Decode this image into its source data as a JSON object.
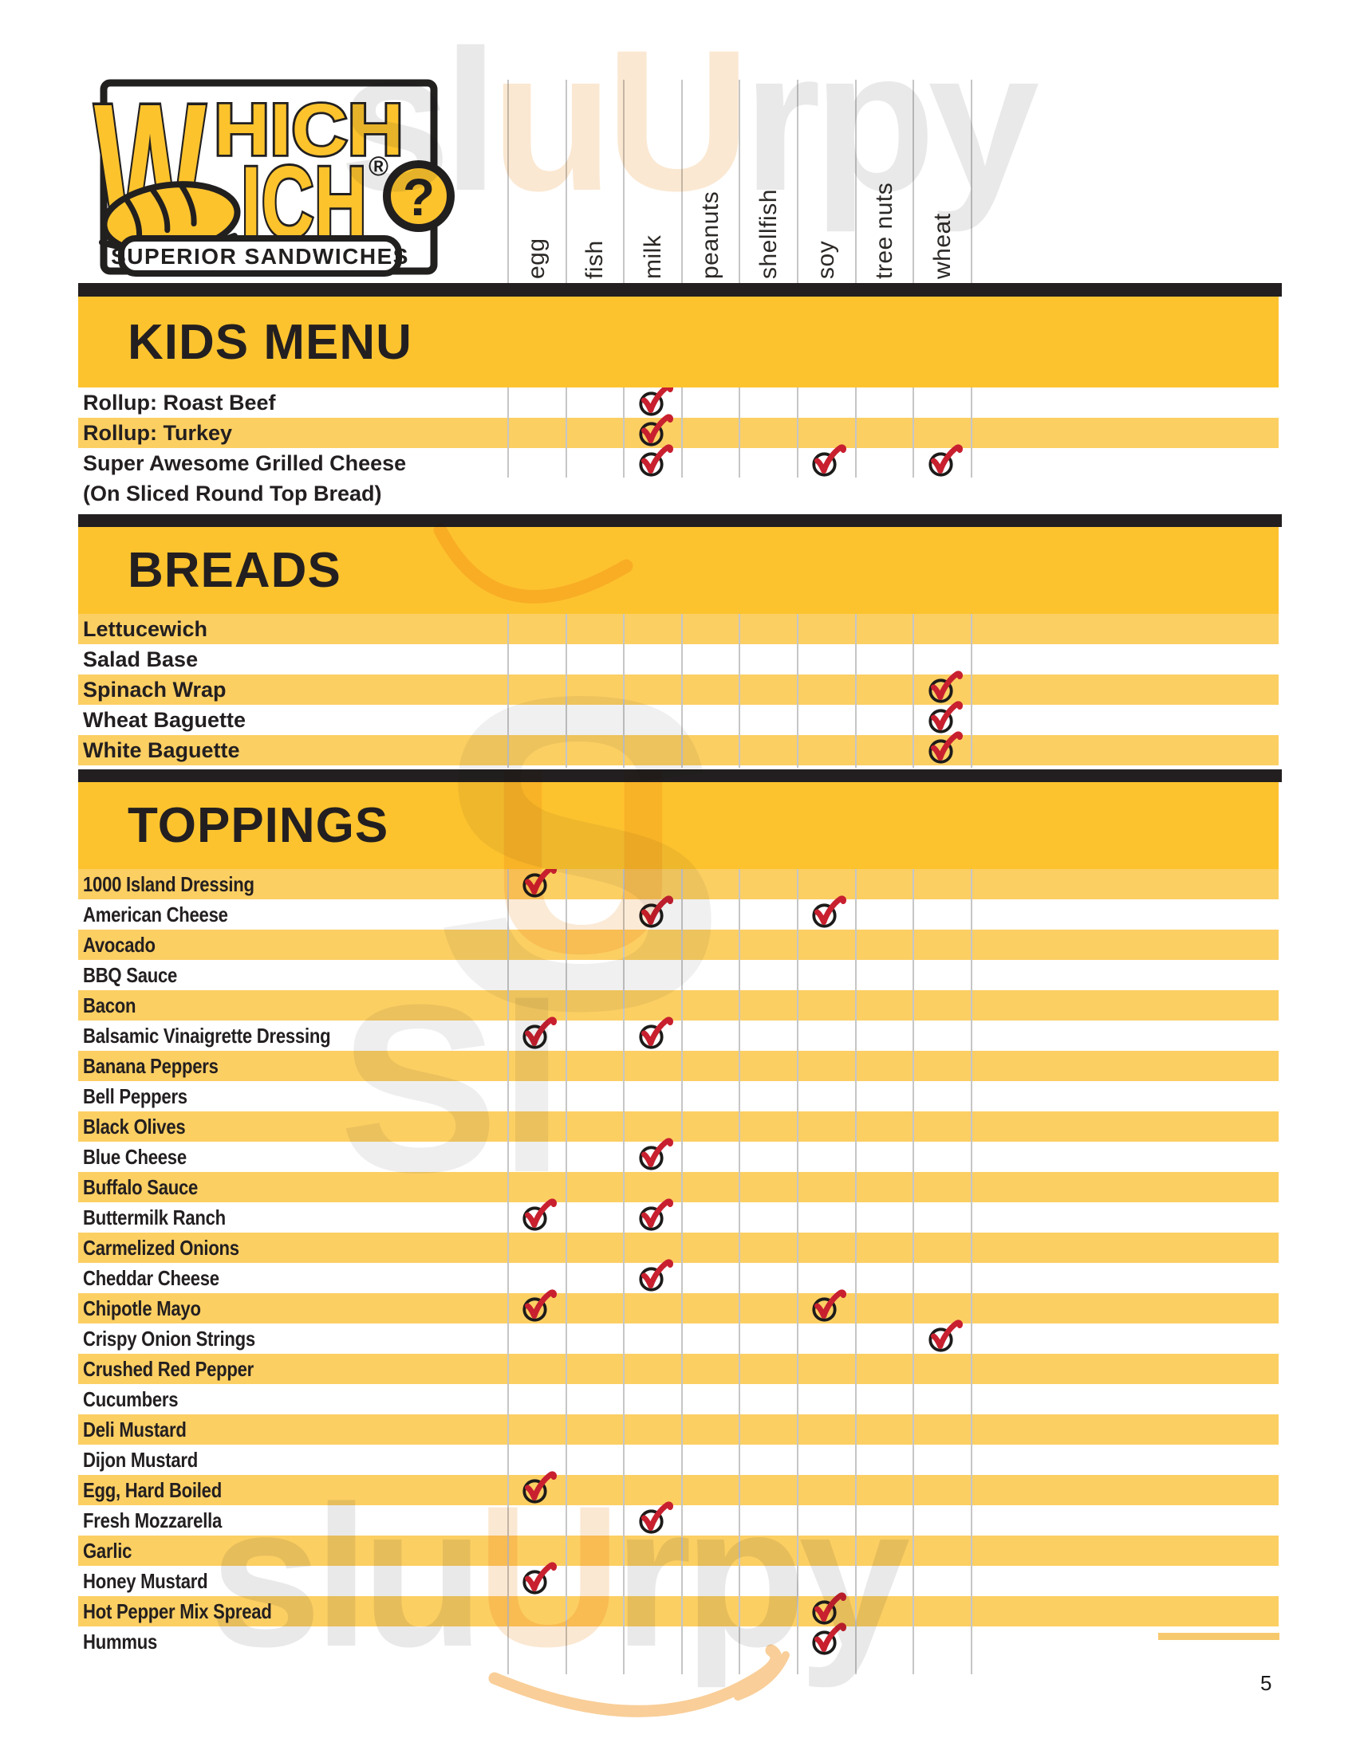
{
  "page_number": "5",
  "logo": {
    "letter_shared": "W",
    "word_top_rest": "HICH",
    "word_bottom_rest": "ICH",
    "registered_mark": "®",
    "question_mark": "?",
    "tagline": "SUPERIOR SANDWICHES"
  },
  "allergen_columns": [
    "egg",
    "fish",
    "milk",
    "peanuts",
    "shellfish",
    "soy",
    "tree nuts",
    "wheat"
  ],
  "sections": [
    {
      "title": "KIDS MENU",
      "rows": [
        {
          "label": "Rollup: Roast Beef",
          "allergens": [
            "milk"
          ]
        },
        {
          "label": "Rollup: Turkey",
          "allergens": [
            "milk"
          ]
        },
        {
          "label": "Super Awesome Grilled Cheese",
          "sub_label": "(On Sliced Round Top Bread)",
          "allergens": [
            "milk",
            "soy",
            "wheat"
          ]
        }
      ]
    },
    {
      "title": "BREADS",
      "rows": [
        {
          "label": "Lettucewich",
          "allergens": []
        },
        {
          "label": "Salad Base",
          "allergens": []
        },
        {
          "label": "Spinach Wrap",
          "allergens": [
            "wheat"
          ]
        },
        {
          "label": "Wheat Baguette",
          "allergens": [
            "wheat"
          ]
        },
        {
          "label": "White Baguette",
          "allergens": [
            "wheat"
          ]
        }
      ]
    },
    {
      "title": "TOPPINGS",
      "rows": [
        {
          "label": "1000 Island Dressing",
          "allergens": [
            "egg"
          ]
        },
        {
          "label": "American Cheese",
          "allergens": [
            "milk",
            "soy"
          ]
        },
        {
          "label": "Avocado",
          "allergens": []
        },
        {
          "label": "BBQ Sauce",
          "allergens": []
        },
        {
          "label": "Bacon",
          "allergens": []
        },
        {
          "label": "Balsamic Vinaigrette Dressing",
          "allergens": [
            "egg",
            "milk"
          ]
        },
        {
          "label": "Banana Peppers",
          "allergens": []
        },
        {
          "label": "Bell Peppers",
          "allergens": []
        },
        {
          "label": "Black Olives",
          "allergens": []
        },
        {
          "label": "Blue Cheese",
          "allergens": [
            "milk"
          ]
        },
        {
          "label": "Buffalo Sauce",
          "allergens": []
        },
        {
          "label": "Buttermilk Ranch",
          "allergens": [
            "egg",
            "milk"
          ]
        },
        {
          "label": "Carmelized Onions",
          "allergens": []
        },
        {
          "label": "Cheddar Cheese",
          "allergens": [
            "milk"
          ]
        },
        {
          "label": "Chipotle Mayo",
          "allergens": [
            "egg",
            "soy"
          ]
        },
        {
          "label": "Crispy Onion Strings",
          "allergens": [
            "wheat"
          ]
        },
        {
          "label": "Crushed Red Pepper",
          "allergens": []
        },
        {
          "label": "Cucumbers",
          "allergens": []
        },
        {
          "label": "Deli Mustard",
          "allergens": []
        },
        {
          "label": "Dijon Mustard",
          "allergens": []
        },
        {
          "label": "Egg, Hard Boiled",
          "allergens": [
            "egg"
          ]
        },
        {
          "label": "Fresh Mozzarella",
          "allergens": [
            "milk"
          ]
        },
        {
          "label": "Garlic",
          "allergens": []
        },
        {
          "label": "Honey Mustard",
          "allergens": [
            "egg"
          ]
        },
        {
          "label": "Hot Pepper Mix Spread",
          "allergens": [
            "soy"
          ]
        },
        {
          "label": "Hummus",
          "allergens": [
            "soy"
          ]
        }
      ]
    }
  ],
  "watermark": {
    "top_segments": [
      "sl",
      "uU",
      "rpy"
    ],
    "bottom_segments": [
      "slu",
      "U",
      "rpy"
    ],
    "mid_s": "S",
    "mid_u": "U",
    "mid_sl": "Sl"
  },
  "colors": {
    "band_yellow": "#fdc32e",
    "stripe_yellow": "#fccf63",
    "ink_black": "#231f20",
    "check_red": "#c8202f",
    "gridline_gray": "#c6c6c6"
  }
}
